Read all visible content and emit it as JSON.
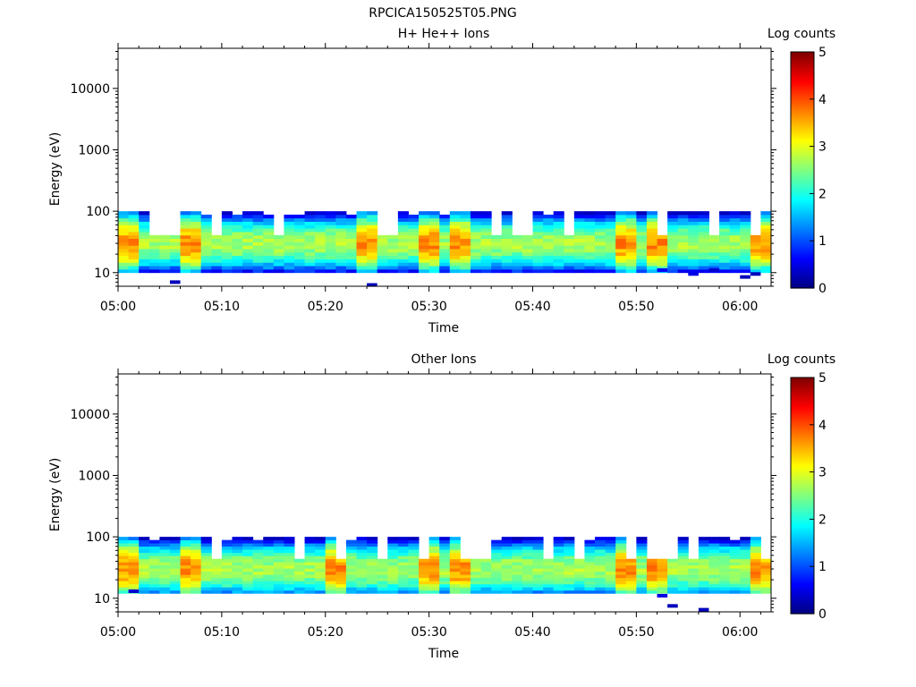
{
  "figure": {
    "title": "RPCICA150525T05.PNG"
  },
  "colorscale": {
    "stops": [
      "#00007f",
      "#0000ff",
      "#007fff",
      "#00ffff",
      "#7fff7f",
      "#ffff00",
      "#ff7f00",
      "#ff0000",
      "#7f0000"
    ]
  },
  "chart_data": [
    {
      "type": "heatmap",
      "title": "H+ He++ Ions",
      "xlabel": "Time",
      "ylabel": "Energy (eV)",
      "xlim": [
        "05:00",
        "06:03"
      ],
      "ylim": [
        6,
        45000
      ],
      "yscale": "log",
      "x_ticks": [
        "05:00",
        "05:10",
        "05:20",
        "05:30",
        "05:40",
        "05:50",
        "06:00"
      ],
      "y_ticks": [
        "10",
        "100",
        "1000",
        "10000"
      ],
      "colorbar": {
        "label": "Log counts",
        "range": [
          0,
          5
        ],
        "ticks": [
          "0",
          "1",
          "2",
          "3",
          "4",
          "5"
        ]
      },
      "time_start": "05:00",
      "time_end": "06:03",
      "energy_range_populated": [
        10,
        100
      ],
      "peak_energy_eV": 30,
      "peak_times": [
        "05:01",
        "05:07",
        "05:24",
        "05:30",
        "05:33",
        "05:49",
        "05:52",
        "06:02"
      ],
      "low_energy_sporadic_points": [
        {
          "time": "05:05",
          "energy": 7,
          "value": 0.3
        },
        {
          "time": "05:24",
          "energy": 6.3,
          "value": 0.3
        },
        {
          "time": "05:52",
          "energy": 11,
          "value": 0.6
        },
        {
          "time": "05:55",
          "energy": 9.5,
          "value": 0.5
        },
        {
          "time": "05:57",
          "energy": 11,
          "value": 0.4
        },
        {
          "time": "06:00",
          "energy": 8.5,
          "value": 0.3
        },
        {
          "time": "06:01",
          "energy": 9.5,
          "value": 0.3
        }
      ]
    },
    {
      "type": "heatmap",
      "title": "Other Ions",
      "xlabel": "Time",
      "ylabel": "Energy (eV)",
      "xlim": [
        "05:00",
        "06:03"
      ],
      "ylim": [
        6,
        45000
      ],
      "yscale": "log",
      "x_ticks": [
        "05:00",
        "05:10",
        "05:20",
        "05:30",
        "05:40",
        "05:50",
        "06:00"
      ],
      "y_ticks": [
        "10",
        "100",
        "1000",
        "10000"
      ],
      "colorbar": {
        "label": "Log counts",
        "range": [
          0,
          5
        ],
        "ticks": [
          "0",
          "1",
          "2",
          "3",
          "4",
          "5"
        ]
      },
      "time_start": "05:00",
      "time_end": "06:03",
      "energy_range_populated": [
        12,
        100
      ],
      "peak_energy_eV": 30,
      "peak_times": [
        "05:01",
        "05:07",
        "05:21",
        "05:30",
        "05:33",
        "05:49",
        "05:52",
        "06:02"
      ],
      "low_energy_sporadic_points": [
        {
          "time": "05:01",
          "energy": 13,
          "value": 0.4
        },
        {
          "time": "05:52",
          "energy": 11,
          "value": 0.5
        },
        {
          "time": "05:53",
          "energy": 7.5,
          "value": 0.3
        },
        {
          "time": "05:56",
          "energy": 6.5,
          "value": 0.3
        }
      ]
    }
  ]
}
